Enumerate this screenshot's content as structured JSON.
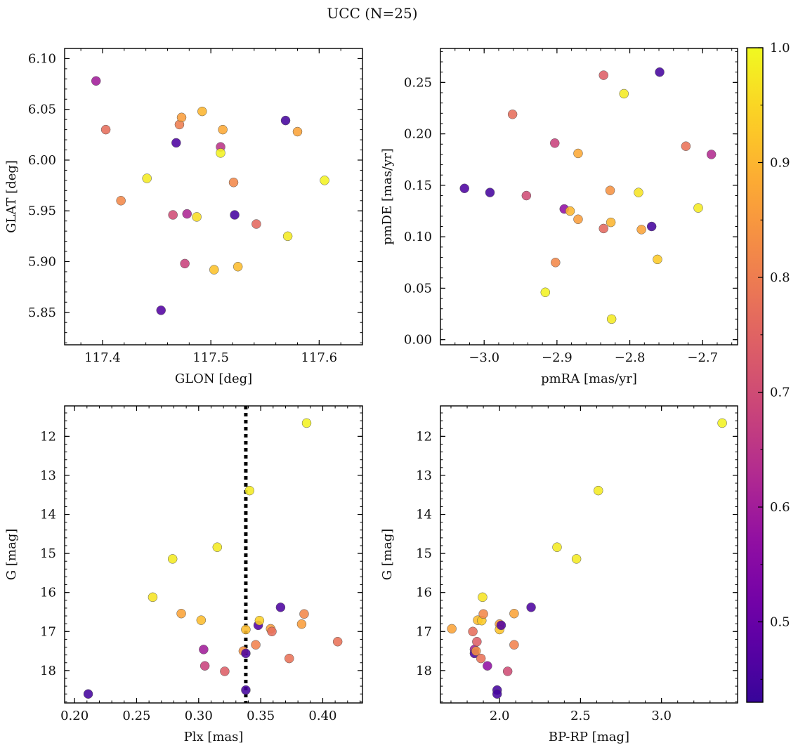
{
  "figure": {
    "title": "UCC (N=25)"
  },
  "colorbar": {
    "range": [
      0.43,
      1.0
    ],
    "ticks": [
      "0.5",
      "0.6",
      "0.7",
      "0.8",
      "0.9",
      "1.0"
    ],
    "tick_values": [
      0.5,
      0.6,
      0.7,
      0.8,
      0.9,
      1.0
    ],
    "colormap": "plasma"
  },
  "chart_data": [
    {
      "type": "scatter",
      "xlabel": "GLON [deg]",
      "ylabel": "GLAT [deg]",
      "xlim": [
        117.365,
        117.64
      ],
      "ylim": [
        5.818,
        6.11
      ],
      "y_inverted": false,
      "xticks": [
        117.4,
        117.5,
        117.6
      ],
      "xtick_labels": [
        "117.4",
        "117.5",
        "117.6"
      ],
      "yticks": [
        5.85,
        5.9,
        5.95,
        6.0,
        6.05,
        6.1
      ],
      "ytick_labels": [
        "5.85",
        "5.90",
        "5.95",
        "6.00",
        "6.05",
        "6.10"
      ],
      "points": [
        {
          "x": 117.394,
          "y": 6.078,
          "c": 0.6
        },
        {
          "x": 117.403,
          "y": 6.03,
          "c": 0.77
        },
        {
          "x": 117.417,
          "y": 5.96,
          "c": 0.82
        },
        {
          "x": 117.441,
          "y": 5.982,
          "c": 0.98
        },
        {
          "x": 117.454,
          "y": 5.852,
          "c": 0.47
        },
        {
          "x": 117.465,
          "y": 5.946,
          "c": 0.7
        },
        {
          "x": 117.468,
          "y": 6.017,
          "c": 0.46
        },
        {
          "x": 117.471,
          "y": 6.035,
          "c": 0.8
        },
        {
          "x": 117.473,
          "y": 6.042,
          "c": 0.86
        },
        {
          "x": 117.476,
          "y": 5.898,
          "c": 0.68
        },
        {
          "x": 117.478,
          "y": 5.947,
          "c": 0.62
        },
        {
          "x": 117.487,
          "y": 5.944,
          "c": 0.96
        },
        {
          "x": 117.492,
          "y": 6.048,
          "c": 0.9
        },
        {
          "x": 117.503,
          "y": 5.892,
          "c": 0.92
        },
        {
          "x": 117.509,
          "y": 6.013,
          "c": 0.65
        },
        {
          "x": 117.509,
          "y": 6.007,
          "c": 0.99
        },
        {
          "x": 117.511,
          "y": 6.03,
          "c": 0.88
        },
        {
          "x": 117.521,
          "y": 5.978,
          "c": 0.82
        },
        {
          "x": 117.522,
          "y": 5.946,
          "c": 0.45
        },
        {
          "x": 117.525,
          "y": 5.895,
          "c": 0.91
        },
        {
          "x": 117.542,
          "y": 5.937,
          "c": 0.76
        },
        {
          "x": 117.569,
          "y": 6.039,
          "c": 0.45
        },
        {
          "x": 117.571,
          "y": 5.925,
          "c": 0.98
        },
        {
          "x": 117.58,
          "y": 6.028,
          "c": 0.87
        },
        {
          "x": 117.605,
          "y": 5.98,
          "c": 0.99
        }
      ]
    },
    {
      "type": "scatter",
      "xlabel": "pmRA [mas/yr]",
      "ylabel": "pmDE [mas/yr]",
      "xlim": [
        -3.06,
        -2.652
      ],
      "ylim": [
        -0.005,
        0.283
      ],
      "y_inverted": false,
      "xticks": [
        -3.0,
        -2.9,
        -2.8,
        -2.7
      ],
      "xtick_labels": [
        "−3.0",
        "−2.9",
        "−2.8",
        "−2.7"
      ],
      "yticks": [
        0.0,
        0.05,
        0.1,
        0.15,
        0.2,
        0.25
      ],
      "ytick_labels": [
        "0.00",
        "0.05",
        "0.10",
        "0.15",
        "0.20",
        "0.25"
      ],
      "points": [
        {
          "x": -3.027,
          "y": 0.147,
          "c": 0.46
        },
        {
          "x": -2.992,
          "y": 0.143,
          "c": 0.45
        },
        {
          "x": -2.961,
          "y": 0.219,
          "c": 0.77
        },
        {
          "x": -2.942,
          "y": 0.14,
          "c": 0.7
        },
        {
          "x": -2.916,
          "y": 0.046,
          "c": 0.99
        },
        {
          "x": -2.903,
          "y": 0.191,
          "c": 0.68
        },
        {
          "x": -2.902,
          "y": 0.075,
          "c": 0.82
        },
        {
          "x": -2.89,
          "y": 0.127,
          "c": 0.57
        },
        {
          "x": -2.882,
          "y": 0.125,
          "c": 0.9
        },
        {
          "x": -2.871,
          "y": 0.181,
          "c": 0.88
        },
        {
          "x": -2.871,
          "y": 0.117,
          "c": 0.86
        },
        {
          "x": -2.836,
          "y": 0.257,
          "c": 0.74
        },
        {
          "x": -2.836,
          "y": 0.108,
          "c": 0.76
        },
        {
          "x": -2.827,
          "y": 0.145,
          "c": 0.84
        },
        {
          "x": -2.826,
          "y": 0.114,
          "c": 0.9
        },
        {
          "x": -2.825,
          "y": 0.02,
          "c": 0.98
        },
        {
          "x": -2.808,
          "y": 0.239,
          "c": 0.98
        },
        {
          "x": -2.788,
          "y": 0.143,
          "c": 0.97
        },
        {
          "x": -2.784,
          "y": 0.107,
          "c": 0.87
        },
        {
          "x": -2.77,
          "y": 0.11,
          "c": 0.45
        },
        {
          "x": -2.762,
          "y": 0.078,
          "c": 0.93
        },
        {
          "x": -2.759,
          "y": 0.26,
          "c": 0.45
        },
        {
          "x": -2.723,
          "y": 0.188,
          "c": 0.78
        },
        {
          "x": -2.706,
          "y": 0.128,
          "c": 0.98
        },
        {
          "x": -2.688,
          "y": 0.18,
          "c": 0.63
        }
      ]
    },
    {
      "type": "scatter",
      "xlabel": "Plx [mas]",
      "ylabel": "G [mag]",
      "xlim": [
        0.192,
        0.432
      ],
      "ylim": [
        11.22,
        18.83
      ],
      "y_inverted": true,
      "xticks": [
        0.2,
        0.25,
        0.3,
        0.35,
        0.4
      ],
      "xtick_labels": [
        "0.20",
        "0.25",
        "0.30",
        "0.35",
        "0.40"
      ],
      "yticks": [
        12,
        13,
        14,
        15,
        16,
        17,
        18
      ],
      "ytick_labels": [
        "12",
        "13",
        "14",
        "15",
        "16",
        "17",
        "18"
      ],
      "vline": {
        "x": 0.338,
        "style": "dotted"
      },
      "points": [
        {
          "x": 0.211,
          "y": 18.6,
          "c": 0.45
        },
        {
          "x": 0.263,
          "y": 16.12,
          "c": 0.97
        },
        {
          "x": 0.279,
          "y": 15.14,
          "c": 0.98
        },
        {
          "x": 0.286,
          "y": 16.54,
          "c": 0.87
        },
        {
          "x": 0.302,
          "y": 16.71,
          "c": 0.91
        },
        {
          "x": 0.304,
          "y": 17.46,
          "c": 0.6
        },
        {
          "x": 0.305,
          "y": 17.88,
          "c": 0.68
        },
        {
          "x": 0.315,
          "y": 14.84,
          "c": 0.98
        },
        {
          "x": 0.321,
          "y": 18.02,
          "c": 0.74
        },
        {
          "x": 0.336,
          "y": 17.5,
          "c": 0.84
        },
        {
          "x": 0.338,
          "y": 16.95,
          "c": 0.91
        },
        {
          "x": 0.338,
          "y": 17.56,
          "c": 0.46
        },
        {
          "x": 0.338,
          "y": 18.5,
          "c": 0.45
        },
        {
          "x": 0.341,
          "y": 13.39,
          "c": 0.98
        },
        {
          "x": 0.346,
          "y": 17.34,
          "c": 0.81
        },
        {
          "x": 0.348,
          "y": 16.84,
          "c": 0.47
        },
        {
          "x": 0.349,
          "y": 16.72,
          "c": 0.94
        },
        {
          "x": 0.358,
          "y": 16.93,
          "c": 0.86
        },
        {
          "x": 0.359,
          "y": 17.0,
          "c": 0.77
        },
        {
          "x": 0.366,
          "y": 16.38,
          "c": 0.46
        },
        {
          "x": 0.373,
          "y": 17.69,
          "c": 0.78
        },
        {
          "x": 0.383,
          "y": 16.81,
          "c": 0.86
        },
        {
          "x": 0.385,
          "y": 16.55,
          "c": 0.82
        },
        {
          "x": 0.387,
          "y": 11.66,
          "c": 0.99
        },
        {
          "x": 0.412,
          "y": 17.26,
          "c": 0.78
        }
      ]
    },
    {
      "type": "scatter",
      "xlabel": "BP-RP [mag]",
      "ylabel": "G [mag]",
      "xlim": [
        1.635,
        3.47
      ],
      "ylim": [
        11.22,
        18.83
      ],
      "y_inverted": true,
      "xticks": [
        2.0,
        2.5,
        3.0
      ],
      "xtick_labels": [
        "2.0",
        "2.5",
        "3.0"
      ],
      "yticks": [
        12,
        13,
        14,
        15,
        16,
        17,
        18
      ],
      "ytick_labels": [
        "12",
        "13",
        "14",
        "15",
        "16",
        "17",
        "18"
      ],
      "points": [
        {
          "x": 1.705,
          "y": 16.93,
          "c": 0.87
        },
        {
          "x": 1.835,
          "y": 17.0,
          "c": 0.77
        },
        {
          "x": 1.845,
          "y": 17.46,
          "c": 0.6
        },
        {
          "x": 1.845,
          "y": 17.56,
          "c": 0.46
        },
        {
          "x": 1.855,
          "y": 17.5,
          "c": 0.84
        },
        {
          "x": 1.86,
          "y": 17.26,
          "c": 0.74
        },
        {
          "x": 1.865,
          "y": 16.71,
          "c": 0.91
        },
        {
          "x": 1.885,
          "y": 17.69,
          "c": 0.78
        },
        {
          "x": 1.89,
          "y": 16.72,
          "c": 0.93
        },
        {
          "x": 1.895,
          "y": 16.12,
          "c": 0.97
        },
        {
          "x": 1.9,
          "y": 16.55,
          "c": 0.82
        },
        {
          "x": 1.925,
          "y": 17.88,
          "c": 0.57
        },
        {
          "x": 1.985,
          "y": 18.5,
          "c": 0.45
        },
        {
          "x": 1.985,
          "y": 18.6,
          "c": 0.45
        },
        {
          "x": 2.0,
          "y": 16.81,
          "c": 0.86
        },
        {
          "x": 2.0,
          "y": 16.95,
          "c": 0.92
        },
        {
          "x": 2.01,
          "y": 16.84,
          "c": 0.47
        },
        {
          "x": 2.05,
          "y": 18.02,
          "c": 0.7
        },
        {
          "x": 2.09,
          "y": 16.54,
          "c": 0.87
        },
        {
          "x": 2.09,
          "y": 17.34,
          "c": 0.81
        },
        {
          "x": 2.195,
          "y": 16.38,
          "c": 0.46
        },
        {
          "x": 2.355,
          "y": 14.84,
          "c": 0.98
        },
        {
          "x": 2.475,
          "y": 15.14,
          "c": 0.98
        },
        {
          "x": 2.61,
          "y": 13.39,
          "c": 0.98
        },
        {
          "x": 3.375,
          "y": 11.66,
          "c": 0.99
        }
      ]
    }
  ]
}
